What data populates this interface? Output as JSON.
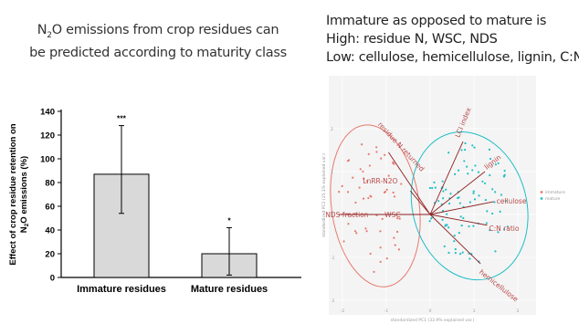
{
  "left_title": {
    "line1_pre": "N",
    "line1_sub": "2",
    "line1_post": "O emissions from crop residues can",
    "line2": "be predicted according to maturity class"
  },
  "right_title": {
    "line1": "Immature as opposed to mature is",
    "line2": "High: residue N, WSC, NDS",
    "line3": "Low: cellulose, hemicellulose, lignin, C:N"
  },
  "chart_data": [
    {
      "type": "bar",
      "categories": [
        "Immature residues",
        "Mature residues"
      ],
      "values": [
        87,
        20
      ],
      "error_low": [
        54,
        2
      ],
      "error_high": [
        128,
        42
      ],
      "significance": [
        "***",
        "*"
      ],
      "ylabel_line1": "Effect of crop residue retention on",
      "ylabel_line2_pre": "N",
      "ylabel_line2_sub": "2",
      "ylabel_line2_post": "O emissions (%)",
      "ylim": [
        0,
        140
      ],
      "yticks": [
        0,
        20,
        40,
        60,
        80,
        100,
        120,
        140
      ],
      "colors": {
        "bar": "#d9d9d9",
        "edge": "#000000"
      }
    },
    {
      "type": "scatter",
      "xlabel": "standardized PC1 (33.9% explained var.)",
      "ylabel": "standardized PC2 (25.1% explained var.)",
      "xticks": [
        "-2",
        "-1",
        "0",
        "1",
        "2"
      ],
      "yticks": [
        "2",
        "1",
        "0",
        "-1",
        "-2"
      ],
      "legend": [
        "immature",
        "mature"
      ],
      "legend_position": "right",
      "vectors": [
        {
          "name": "LCI index",
          "x": 0.75,
          "y": 1.7
        },
        {
          "name": "lignin",
          "x": 1.25,
          "y": 1.0
        },
        {
          "name": "cellulose",
          "x": 1.45,
          "y": 0.3
        },
        {
          "name": "C:N ratio",
          "x": 1.3,
          "y": -0.25
        },
        {
          "name": "hemicellulose",
          "x": 1.15,
          "y": -1.15
        },
        {
          "name": "residue N returned",
          "x": -0.95,
          "y": 1.45
        },
        {
          "name": "LnRR-N2O",
          "x": -0.45,
          "y": 0.55
        },
        {
          "name": "WSC",
          "x": -0.55,
          "y": 0.0
        },
        {
          "name": "NDS fraction",
          "x": -2.1,
          "y": 0.0
        }
      ],
      "colors": {
        "immature": "#e8796f",
        "mature": "#1fbec6",
        "vector": "#8b1f1f"
      }
    }
  ]
}
